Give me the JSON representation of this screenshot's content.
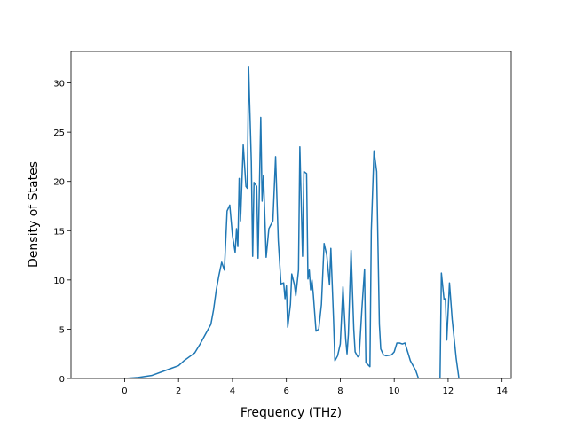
{
  "chart_data": {
    "type": "line",
    "xlabel": "Frequency (THz)",
    "ylabel": "Density of States",
    "xlim": [
      -1.99,
      14.34
    ],
    "ylim": [
      0,
      33.2
    ],
    "xticks": [
      0,
      2,
      4,
      6,
      8,
      10,
      12,
      14
    ],
    "yticks": [
      0,
      5,
      10,
      15,
      20,
      25,
      30
    ],
    "grid": false,
    "series": [
      {
        "color": "#1f77b4",
        "x": [
          -1.25,
          0,
          0.5,
          1.0,
          1.5,
          1.7,
          2.0,
          2.2,
          2.4,
          2.6,
          2.8,
          3.0,
          3.2,
          3.3,
          3.4,
          3.5,
          3.6,
          3.7,
          3.8,
          3.9,
          4.0,
          4.1,
          4.15,
          4.2,
          4.25,
          4.3,
          4.4,
          4.5,
          4.55,
          4.6,
          4.7,
          4.75,
          4.8,
          4.9,
          4.95,
          5.05,
          5.1,
          5.15,
          5.25,
          5.35,
          5.5,
          5.6,
          5.7,
          5.8,
          5.9,
          5.95,
          6.0,
          6.05,
          6.15,
          6.2,
          6.3,
          6.35,
          6.45,
          6.5,
          6.6,
          6.65,
          6.75,
          6.8,
          6.85,
          6.9,
          6.95,
          7.0,
          7.1,
          7.2,
          7.3,
          7.4,
          7.5,
          7.6,
          7.65,
          7.75,
          7.8,
          7.9,
          8.0,
          8.1,
          8.2,
          8.25,
          8.3,
          8.4,
          8.5,
          8.55,
          8.65,
          8.7,
          8.8,
          8.9,
          8.95,
          9.1,
          9.15,
          9.25,
          9.35,
          9.45,
          9.5,
          9.6,
          9.7,
          9.9,
          10.0,
          10.1,
          10.2,
          10.3,
          10.4,
          10.5,
          10.6,
          10.8,
          10.9,
          11.7,
          11.75,
          11.85,
          11.9,
          11.95,
          12.05,
          12.15,
          12.3,
          12.4,
          13.6
        ],
        "values": [
          0,
          0,
          0.1,
          0.3,
          0.8,
          1.0,
          1.3,
          1.8,
          2.2,
          2.6,
          3.5,
          4.5,
          5.5,
          7.0,
          9.0,
          10.5,
          11.8,
          11.0,
          17.0,
          17.6,
          14.5,
          12.8,
          15.2,
          13.4,
          20.3,
          16,
          23.7,
          19.5,
          19.3,
          31.6,
          22,
          12.4,
          19.9,
          19.5,
          12.2,
          26.5,
          18,
          20.6,
          12.3,
          15.2,
          16,
          22.5,
          14,
          9.6,
          9.7,
          8.1,
          9.4,
          5.2,
          7.5,
          10.6,
          9.5,
          8.4,
          11,
          23.5,
          12.4,
          21,
          20.8,
          10.1,
          11,
          9,
          10,
          8.5,
          4.8,
          5.0,
          7.5,
          13.7,
          12.5,
          9.5,
          13.2,
          6.0,
          1.8,
          2.3,
          3.5,
          9.3,
          4,
          2.5,
          4.5,
          13.0,
          5,
          2.7,
          2.2,
          2.3,
          7,
          11.1,
          1.6,
          1.2,
          15,
          23.1,
          21,
          5.5,
          3,
          2.4,
          2.3,
          2.4,
          2.7,
          3.6,
          3.6,
          3.5,
          3.6,
          2.7,
          1.8,
          0.8,
          0,
          0,
          10.7,
          8.0,
          8.1,
          3.9,
          9.7,
          6,
          2,
          0,
          0
        ]
      }
    ]
  }
}
